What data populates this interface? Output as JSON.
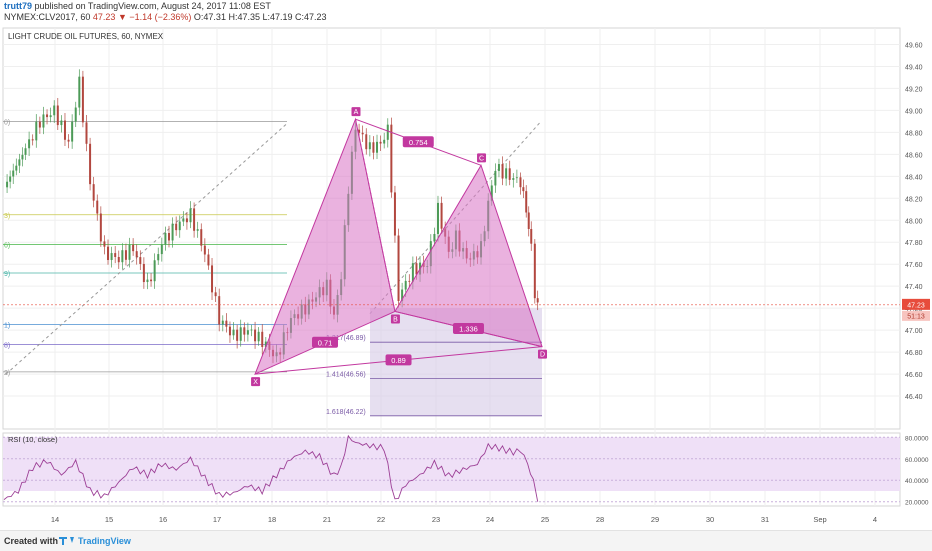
{
  "header": {
    "author": "trutt79",
    "published": "published on TradingView.com, August 24, 2017 11:08 EST",
    "symbol": "NYMEX:CLV2017, 60",
    "last": "47.23",
    "change": "▼ −1.14 (−2.36%)",
    "ohlc": "O:47.31 H:47.35 L:47.19 C:47.23"
  },
  "footer": {
    "created_with": "Created with",
    "brand": "TradingView"
  },
  "colors": {
    "pattern_fill": "#d973c4",
    "pattern_stroke": "#c2389f",
    "label_bg": "#c2389f",
    "candle_up": "#4c9a57",
    "candle_down": "#b2473f",
    "rsi_line": "#9c3f96",
    "rsi_band": "#efe0f7",
    "price_tag": "#e74c3c",
    "projection_box": "#c9b6d8"
  },
  "chart_data": [
    {
      "type": "candlestick",
      "title": "LIGHT CRUDE OIL FUTURES, 60, NYMEX",
      "ylim": [
        46.1,
        49.75
      ],
      "y_ticks": [
        49.6,
        49.4,
        49.2,
        49.0,
        48.8,
        48.6,
        48.4,
        48.2,
        48.0,
        47.8,
        47.6,
        47.4,
        47.2,
        47.0,
        46.8,
        46.6,
        46.4
      ],
      "y_tick_labels": [
        "49.60",
        "49.40",
        "49.20",
        "49.00",
        "48.80",
        "48.60",
        "48.40",
        "48.20",
        "48.00",
        "47.80",
        "47.60",
        "47.40",
        "47.20",
        "47.00",
        "46.80",
        "46.60",
        "46.40"
      ],
      "x_ticks": [
        "14",
        "15",
        "16",
        "17",
        "18",
        "21",
        "22",
        "23",
        "24",
        "25",
        "28",
        "29",
        "30",
        "31",
        "Sep",
        "4"
      ],
      "last_price_label": "47.23",
      "countdown_label": "51:13",
      "price_path": [
        [
          0,
          48.3
        ],
        [
          3,
          48.65
        ],
        [
          5,
          48.9
        ],
        [
          7,
          49.0
        ],
        [
          9,
          48.7
        ],
        [
          10.5,
          49.25
        ],
        [
          12,
          48.35
        ],
        [
          14,
          47.7
        ],
        [
          16,
          47.65
        ],
        [
          18,
          47.75
        ],
        [
          20,
          47.4
        ],
        [
          22,
          47.8
        ],
        [
          24,
          47.95
        ],
        [
          26,
          48.05
        ],
        [
          28,
          47.7
        ],
        [
          30,
          47.1
        ],
        [
          32,
          46.95
        ],
        [
          34,
          47.0
        ],
        [
          36,
          46.9
        ],
        [
          38,
          46.75
        ],
        [
          40,
          47.1
        ],
        [
          42,
          47.2
        ],
        [
          44,
          47.35
        ],
        [
          45,
          47.4
        ],
        [
          46,
          47.12
        ],
        [
          47,
          47.5
        ],
        [
          48,
          48.3
        ],
        [
          49,
          48.85
        ],
        [
          51,
          48.65
        ],
        [
          52.5,
          48.7
        ],
        [
          53.5,
          48.82
        ],
        [
          55,
          47.3
        ],
        [
          57,
          47.55
        ],
        [
          59,
          47.6
        ],
        [
          60.5,
          48.1
        ],
        [
          62,
          47.7
        ],
        [
          63,
          47.85
        ],
        [
          64,
          47.7
        ],
        [
          65,
          47.65
        ],
        [
          66.5,
          47.75
        ],
        [
          67.5,
          48.15
        ],
        [
          68.5,
          48.48
        ],
        [
          70,
          48.42
        ],
        [
          71,
          48.38
        ],
        [
          72,
          48.35
        ],
        [
          72.8,
          48.1
        ],
        [
          73.5,
          47.75
        ],
        [
          74,
          47.3
        ],
        [
          74.4,
          47.23
        ]
      ],
      "harmonic_pattern": {
        "points": [
          {
            "label": "X",
            "x": 35,
            "y": 46.6
          },
          {
            "label": "A",
            "x": 49,
            "y": 48.92
          },
          {
            "label": "B",
            "x": 54.5,
            "y": 47.17
          },
          {
            "label": "C",
            "x": 66.5,
            "y": 48.5
          },
          {
            "label": "D",
            "x": 75,
            "y": 46.85
          }
        ],
        "ratios": [
          {
            "label": "0.754",
            "between": "A-C"
          },
          {
            "label": "0.71",
            "between": "X-B"
          },
          {
            "label": "1.336",
            "between": "B-D"
          },
          {
            "label": "0.89",
            "between": "X-D"
          }
        ]
      },
      "fib_projection": [
        {
          "label": "1.217(46.89)",
          "value": 46.89
        },
        {
          "label": "1.414(46.56)",
          "value": 46.56
        },
        {
          "label": "1.618(46.22)",
          "value": 46.22
        }
      ],
      "fib_levels_left": [
        {
          "label": "0)",
          "value": 48.9,
          "color": "#999999"
        },
        {
          "label": "3)",
          "value": 48.05,
          "color": "#c8c84a"
        },
        {
          "label": "6)",
          "value": 47.78,
          "color": "#5fbf60"
        },
        {
          "label": "9)",
          "value": 47.52,
          "color": "#4cb5a8"
        },
        {
          "label": "1)",
          "value": 47.05,
          "color": "#4a8fd0"
        },
        {
          "label": "8)",
          "value": 46.87,
          "color": "#7b6bc9"
        },
        {
          "label": "2)",
          "value": 46.62,
          "color": "#999999"
        }
      ],
      "grid": true
    },
    {
      "type": "line",
      "title": "RSI (10, close)",
      "ylim": [
        16,
        84
      ],
      "y_ticks": [
        80,
        60,
        40,
        20
      ],
      "y_tick_labels": [
        "80.0000",
        "60.0000",
        "40.0000",
        "20.0000"
      ],
      "band": [
        30,
        80
      ],
      "values": [
        [
          0,
          22
        ],
        [
          2,
          30
        ],
        [
          4,
          52
        ],
        [
          6,
          58
        ],
        [
          8,
          45
        ],
        [
          10,
          57
        ],
        [
          12,
          30
        ],
        [
          14,
          25
        ],
        [
          16,
          38
        ],
        [
          18,
          52
        ],
        [
          20,
          45
        ],
        [
          22,
          55
        ],
        [
          24,
          50
        ],
        [
          26,
          60
        ],
        [
          28,
          42
        ],
        [
          30,
          26
        ],
        [
          32,
          28
        ],
        [
          34,
          35
        ],
        [
          36,
          30
        ],
        [
          38,
          45
        ],
        [
          40,
          60
        ],
        [
          42,
          67
        ],
        [
          44,
          62
        ],
        [
          46,
          44
        ],
        [
          47,
          52
        ],
        [
          48,
          80
        ],
        [
          49,
          75
        ],
        [
          51,
          72
        ],
        [
          53,
          70
        ],
        [
          54.5,
          20
        ],
        [
          56,
          36
        ],
        [
          58,
          45
        ],
        [
          60,
          56
        ],
        [
          62,
          44
        ],
        [
          64,
          50
        ],
        [
          66,
          55
        ],
        [
          67.5,
          72
        ],
        [
          69,
          70
        ],
        [
          71,
          66
        ],
        [
          72,
          68
        ],
        [
          73,
          56
        ],
        [
          73.8,
          38
        ],
        [
          74.4,
          20
        ]
      ]
    }
  ]
}
